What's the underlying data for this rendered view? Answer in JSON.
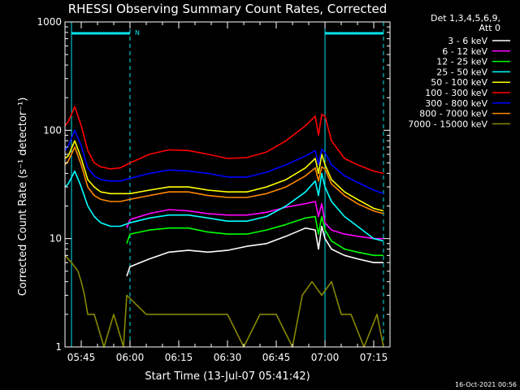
{
  "chart_data": {
    "type": "line",
    "title": "RHESSI Observing Summary Count Rates, Corrected",
    "xlabel": "Start Time (13-Jul-07 05:41:42)",
    "ylabel": "Corrected Count Rate (s⁻¹ detector⁻¹)",
    "yscale": "log",
    "ylim": [
      1,
      1000
    ],
    "xlim": [
      "05:40",
      "07:20"
    ],
    "y_ticks": [
      "1",
      "10",
      "100",
      "1000"
    ],
    "x_ticks": [
      "05:45",
      "06:00",
      "06:15",
      "06:30",
      "06:45",
      "07:00",
      "07:15"
    ],
    "legend_header": [
      "Det 1,3,4,5,6,9,",
      "Att 0"
    ],
    "legend_position": "right",
    "bar_marker": "N",
    "timestamp": "16-Oct-2021 00:56",
    "night_bars": [
      [
        "05:42",
        "06:00"
      ],
      [
        "07:00",
        "07:18"
      ]
    ],
    "vlines_solid": [
      "05:42",
      "07:00"
    ],
    "vlines_dashed": [
      "06:00",
      "07:18"
    ],
    "series": [
      {
        "name": "3 - 6 keV",
        "color": "#ffffff",
        "x": [
          "05:40",
          "05:46",
          "05:52",
          "05:58",
          "05:59",
          "06:00",
          "06:06",
          "06:12",
          "06:18",
          "06:24",
          "06:30",
          "06:36",
          "06:42",
          "06:48",
          "06:54",
          "06:57",
          "06:58",
          "06:59",
          "07:00",
          "07:02",
          "07:06",
          "07:10",
          "07:15",
          "07:18"
        ],
        "values": [
          null,
          null,
          null,
          null,
          4.5,
          5.5,
          6.5,
          7.5,
          7.8,
          7.5,
          7.8,
          8.5,
          9.0,
          10.5,
          12.5,
          12.0,
          8.0,
          13.0,
          10.0,
          8.0,
          7.0,
          6.5,
          6.0,
          6.0
        ]
      },
      {
        "name": "6 - 12 keV",
        "color": "#ff00ff",
        "x": [
          "05:40",
          "05:46",
          "05:52",
          "05:58",
          "05:59",
          "06:00",
          "06:06",
          "06:12",
          "06:18",
          "06:24",
          "06:30",
          "06:36",
          "06:42",
          "06:48",
          "06:54",
          "06:57",
          "06:58",
          "06:59",
          "07:00",
          "07:02",
          "07:06",
          "07:10",
          "07:15",
          "07:18"
        ],
        "values": [
          null,
          null,
          null,
          null,
          12.5,
          15.0,
          17.0,
          18.5,
          18.0,
          17.0,
          16.5,
          16.5,
          17.5,
          19.5,
          21.0,
          22.0,
          16.0,
          21.0,
          14.0,
          12.0,
          11.0,
          10.5,
          10.0,
          10.0
        ]
      },
      {
        "name": "12 - 25 keV",
        "color": "#00ff00",
        "x": [
          "05:40",
          "05:46",
          "05:52",
          "05:58",
          "05:59",
          "06:00",
          "06:06",
          "06:12",
          "06:18",
          "06:24",
          "06:30",
          "06:36",
          "06:42",
          "06:48",
          "06:54",
          "06:57",
          "06:58",
          "06:59",
          "07:00",
          "07:02",
          "07:06",
          "07:10",
          "07:15",
          "07:18"
        ],
        "values": [
          null,
          null,
          null,
          null,
          9.0,
          11.0,
          12.0,
          12.5,
          12.5,
          11.5,
          11.0,
          11.0,
          12.0,
          13.5,
          15.5,
          16.0,
          11.0,
          16.0,
          12.0,
          9.5,
          8.0,
          7.5,
          7.0,
          7.0
        ]
      },
      {
        "name": "25 - 50 keV",
        "color": "#00ffff",
        "x": [
          "05:40",
          "05:41",
          "05:43",
          "05:45",
          "05:47",
          "05:49",
          "05:51",
          "05:54",
          "05:57",
          "06:00",
          "06:06",
          "06:12",
          "06:18",
          "06:24",
          "06:30",
          "06:36",
          "06:42",
          "06:48",
          "06:54",
          "06:57",
          "06:58",
          "06:59",
          "07:00",
          "07:02",
          "07:06",
          "07:10",
          "07:15",
          "07:18"
        ],
        "values": [
          30,
          32,
          42,
          30,
          20,
          16,
          14,
          13,
          13,
          14,
          15.5,
          16.5,
          16.5,
          15.5,
          14.5,
          14.5,
          16.0,
          20,
          27,
          34,
          25,
          40,
          30,
          22,
          16,
          13,
          10,
          9.5
        ]
      },
      {
        "name": "50 - 100 keV",
        "color": "#ffff00",
        "x": [
          "05:40",
          "05:41",
          "05:43",
          "05:45",
          "05:47",
          "05:49",
          "05:51",
          "05:54",
          "05:57",
          "06:00",
          "06:06",
          "06:12",
          "06:18",
          "06:24",
          "06:30",
          "06:36",
          "06:42",
          "06:48",
          "06:54",
          "06:57",
          "06:58",
          "06:59",
          "07:00",
          "07:02",
          "07:06",
          "07:10",
          "07:15",
          "07:18"
        ],
        "values": [
          55,
          58,
          80,
          55,
          35,
          30,
          27,
          26,
          26,
          26,
          28,
          30,
          30,
          28,
          27,
          27,
          30,
          35,
          45,
          55,
          40,
          60,
          48,
          35,
          27,
          23,
          19,
          18
        ]
      },
      {
        "name": "100 - 300 keV",
        "color": "#ff0000",
        "x": [
          "05:40",
          "05:41",
          "05:43",
          "05:45",
          "05:47",
          "05:49",
          "05:51",
          "05:54",
          "05:57",
          "06:00",
          "06:06",
          "06:12",
          "06:18",
          "06:24",
          "06:30",
          "06:36",
          "06:42",
          "06:48",
          "06:54",
          "06:57",
          "06:58",
          "06:59",
          "07:00",
          "07:02",
          "07:06",
          "07:10",
          "07:15",
          "07:18"
        ],
        "values": [
          110,
          120,
          165,
          110,
          65,
          50,
          46,
          44,
          45,
          50,
          60,
          66,
          65,
          60,
          55,
          56,
          63,
          80,
          110,
          135,
          90,
          140,
          135,
          80,
          55,
          48,
          42,
          40
        ]
      },
      {
        "name": "300 - 800 keV",
        "color": "#0000ff",
        "x": [
          "05:40",
          "05:41",
          "05:43",
          "05:45",
          "05:47",
          "05:49",
          "05:51",
          "05:54",
          "05:57",
          "06:00",
          "06:06",
          "06:12",
          "06:18",
          "06:24",
          "06:30",
          "06:36",
          "06:42",
          "06:48",
          "06:54",
          "06:57",
          "06:58",
          "06:59",
          "07:00",
          "07:02",
          "07:06",
          "07:10",
          "07:15",
          "07:18"
        ],
        "values": [
          65,
          72,
          100,
          72,
          45,
          38,
          35,
          34,
          34,
          36,
          40,
          43,
          42,
          40,
          37,
          37,
          41,
          48,
          58,
          65,
          48,
          67,
          62,
          48,
          38,
          33,
          28,
          26
        ]
      },
      {
        "name": "800 - 7000 keV",
        "color": "#ff8800",
        "x": [
          "05:40",
          "05:41",
          "05:43",
          "05:45",
          "05:47",
          "05:49",
          "05:51",
          "05:54",
          "05:57",
          "06:00",
          "06:06",
          "06:12",
          "06:18",
          "06:24",
          "06:30",
          "06:36",
          "06:42",
          "06:48",
          "06:54",
          "06:57",
          "06:58",
          "06:59",
          "07:00",
          "07:02",
          "07:06",
          "07:10",
          "07:15",
          "07:18"
        ],
        "values": [
          48,
          52,
          70,
          48,
          30,
          25,
          23,
          22,
          22,
          23,
          25,
          27,
          27,
          25,
          24,
          24,
          26,
          30,
          38,
          45,
          34,
          46,
          44,
          32,
          25,
          21,
          18,
          17
        ]
      },
      {
        "name": "7000 - 15000 keV",
        "color": "#888800",
        "x": [
          "05:40",
          "05:42",
          "05:44",
          "05:45",
          "05:46",
          "05:47",
          "05:49",
          "05:52",
          "05:55",
          "05:58",
          "05:59",
          "06:05",
          "06:10",
          "06:15",
          "06:20",
          "06:25",
          "06:30",
          "06:35",
          "06:40",
          "06:45",
          "06:50",
          "06:53",
          "06:56",
          "06:59",
          "07:02",
          "07:05",
          "07:08",
          "07:12",
          "07:16",
          "07:18"
        ],
        "values": [
          7,
          6,
          5,
          4,
          3,
          2,
          2,
          1,
          2,
          1,
          3,
          2,
          2,
          2,
          2,
          2,
          2,
          1,
          2,
          2,
          1,
          3,
          4,
          3,
          4,
          2,
          2,
          1,
          2,
          1
        ]
      }
    ]
  }
}
